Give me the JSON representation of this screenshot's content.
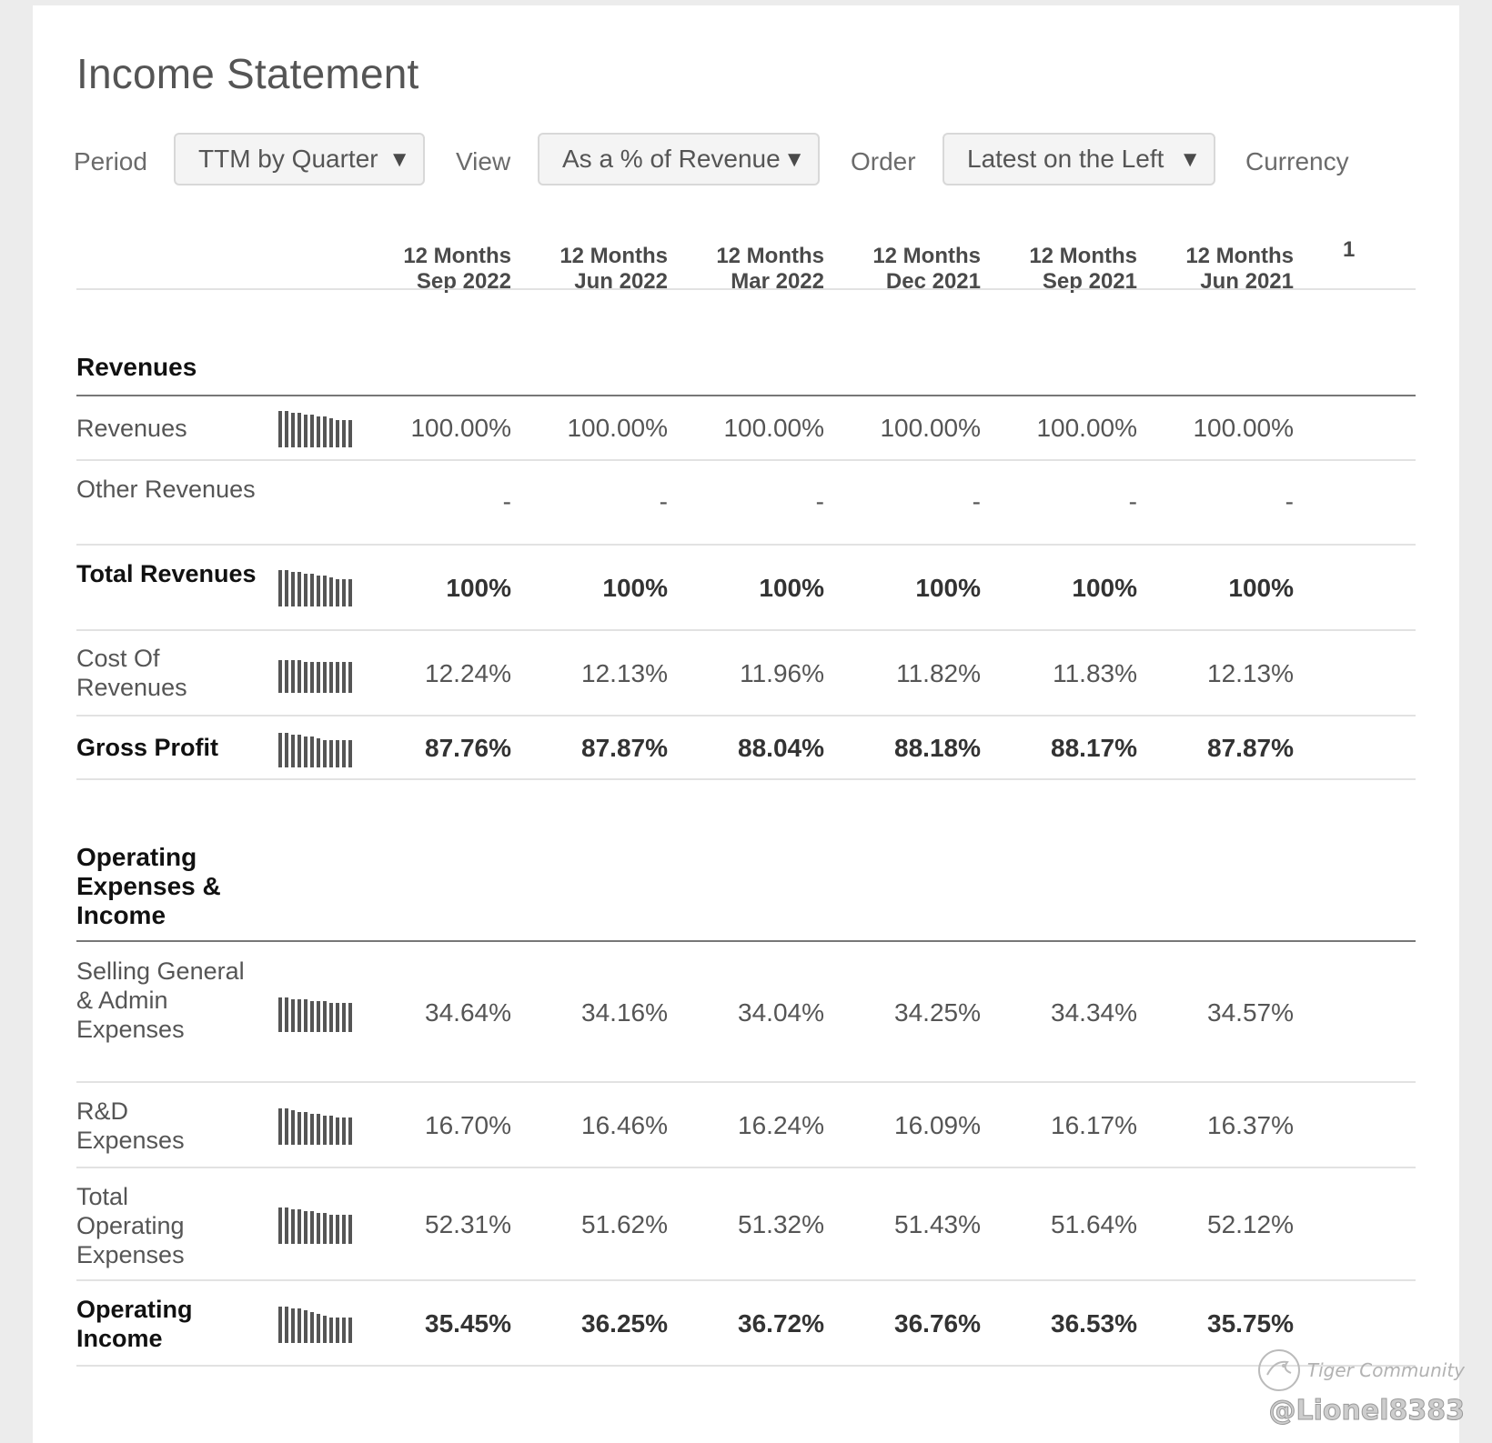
{
  "title": "Income Statement",
  "controls": {
    "period_label": "Period",
    "period_value": "TTM by Quarter",
    "view_label": "View",
    "view_value": "As a % of Revenue",
    "order_label": "Order",
    "order_value": "Latest on the Left",
    "currency_label": "Currency"
  },
  "columns": [
    {
      "line1": "12 Months",
      "line2": "Sep 2022"
    },
    {
      "line1": "12 Months",
      "line2": "Jun 2022"
    },
    {
      "line1": "12 Months",
      "line2": "Mar 2022"
    },
    {
      "line1": "12 Months",
      "line2": "Dec 2021"
    },
    {
      "line1": "12 Months",
      "line2": "Sep 2021"
    },
    {
      "line1": "12 Months",
      "line2": "Jun 2021"
    }
  ],
  "cut_column_label": "1",
  "sections": {
    "revenues_title": "Revenues",
    "operating_title": "Operating Expenses & Income"
  },
  "rows": {
    "revenues": {
      "label": "Revenues",
      "values": [
        "100.00%",
        "100.00%",
        "100.00%",
        "100.00%",
        "100.00%",
        "100.00%"
      ]
    },
    "other_revenues": {
      "label": "Other Revenues",
      "values": [
        "-",
        "-",
        "-",
        "-",
        "-",
        "-"
      ]
    },
    "total_revenues": {
      "label": "Total Revenues",
      "values": [
        "100%",
        "100%",
        "100%",
        "100%",
        "100%",
        "100%"
      ]
    },
    "cost_of_revenues": {
      "label": "Cost Of Revenues",
      "values": [
        "12.24%",
        "12.13%",
        "11.96%",
        "11.82%",
        "11.83%",
        "12.13%"
      ]
    },
    "gross_profit": {
      "label": "Gross Profit",
      "values": [
        "87.76%",
        "87.87%",
        "88.04%",
        "88.18%",
        "88.17%",
        "87.87%"
      ]
    },
    "sga": {
      "label": "Selling General & Admin Expenses",
      "values": [
        "34.64%",
        "34.16%",
        "34.04%",
        "34.25%",
        "34.34%",
        "34.57%"
      ]
    },
    "rnd": {
      "label": "R&D Expenses",
      "values": [
        "16.70%",
        "16.46%",
        "16.24%",
        "16.09%",
        "16.17%",
        "16.37%"
      ]
    },
    "total_opex": {
      "label": "Total Operating Expenses",
      "values": [
        "52.31%",
        "51.62%",
        "51.32%",
        "51.43%",
        "51.64%",
        "52.12%"
      ]
    },
    "operating_income": {
      "label": "Operating Income",
      "values": [
        "35.45%",
        "36.25%",
        "36.72%",
        "36.76%",
        "36.53%",
        "35.75%"
      ]
    }
  },
  "watermark": {
    "brand": "Tiger Community",
    "handle": "@Lionel8383"
  },
  "icons": {
    "dropdown": "triangle-down-icon",
    "sparkline": "bar-chart-icon"
  }
}
